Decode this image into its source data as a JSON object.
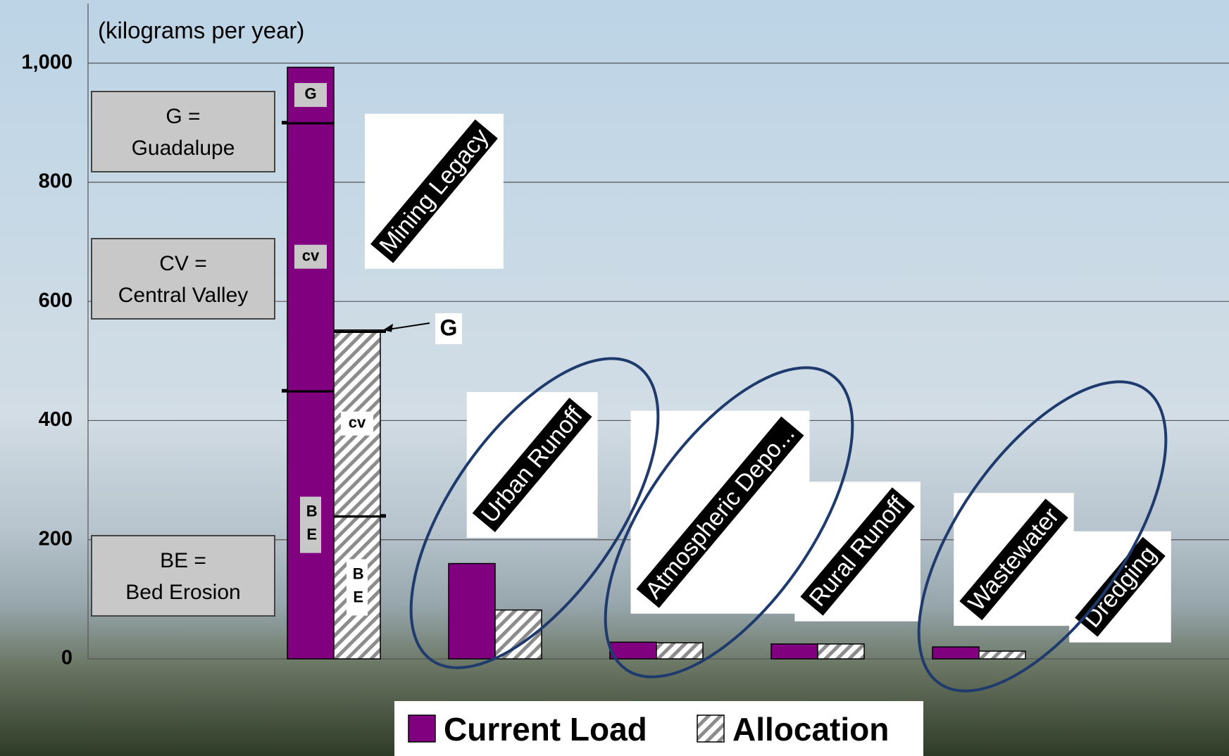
{
  "chart_data": {
    "type": "bar",
    "unit_label": "(kilograms per year)",
    "categories": [
      "Mining Legacy",
      "Urban Runoff",
      "Atmospheric Depo...",
      "Rural Runoff",
      "Wastewater",
      "Dredging"
    ],
    "series": [
      {
        "name": "Current Load",
        "color": "#800080",
        "values": [
          null,
          160,
          28,
          25,
          20,
          null
        ]
      },
      {
        "name": "Allocation",
        "color": "#808080",
        "pattern": "hatch",
        "values": [
          null,
          82,
          27,
          25,
          13,
          null
        ]
      }
    ],
    "stack": {
      "category": 0,
      "segments": [
        {
          "label": "BE",
          "values": [
            450,
            240
          ]
        },
        {
          "label": "cv",
          "values": [
            450,
            310
          ]
        },
        {
          "label": "G",
          "values": [
            93,
            2
          ]
        }
      ],
      "callout": "G"
    },
    "notes": [
      {
        "lines": [
          "G =",
          "Guadalupe"
        ]
      },
      {
        "lines": [
          "CV =",
          "Central Valley"
        ]
      },
      {
        "lines": [
          "BE =",
          "Bed Erosion"
        ]
      }
    ],
    "ylim": [
      0,
      1100
    ],
    "yticks": [
      0,
      200,
      400,
      600,
      800,
      {
        "value": 1000,
        "label": "1,000"
      }
    ],
    "grid": true
  }
}
